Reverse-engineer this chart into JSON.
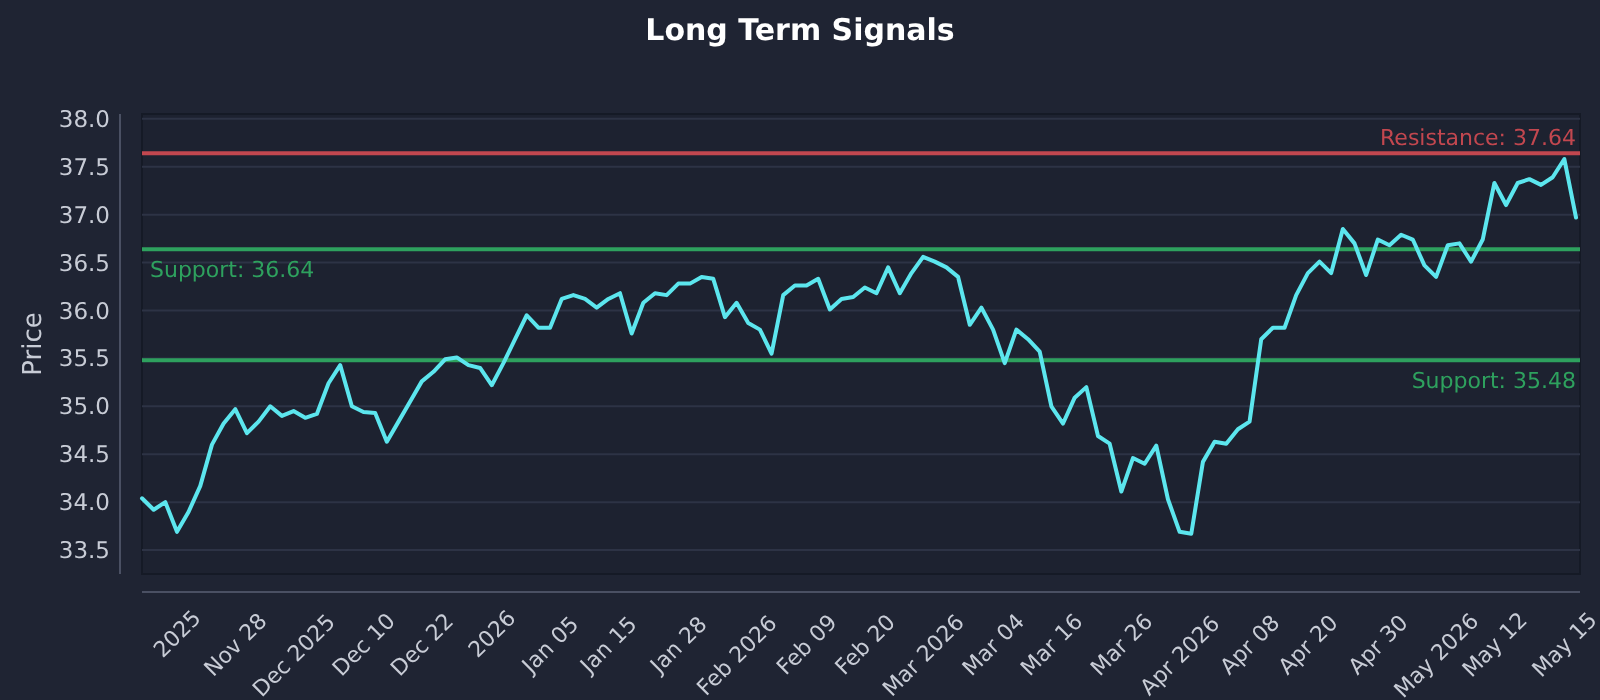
{
  "chart_data": {
    "type": "line",
    "title": "Long Term Signals",
    "ylabel": "Price",
    "categories": [
      null,
      null,
      null,
      "2025",
      null,
      null,
      null,
      null,
      "Nov 28",
      null,
      null,
      null,
      null,
      "Dec 2025",
      null,
      null,
      null,
      null,
      null,
      "Dec 10",
      null,
      null,
      null,
      null,
      "Dec 22",
      null,
      null,
      null,
      null,
      null,
      "2026",
      null,
      null,
      null,
      null,
      "Jan 05",
      null,
      null,
      null,
      null,
      "Jan 15",
      null,
      null,
      null,
      null,
      null,
      "Jan 28",
      null,
      null,
      null,
      null,
      "Feb 2026",
      null,
      null,
      null,
      null,
      null,
      "Feb 09",
      null,
      null,
      null,
      null,
      "Feb 20",
      null,
      null,
      null,
      null,
      "Mar 2026",
      null,
      null,
      null,
      null,
      null,
      "Mar 04",
      null,
      null,
      null,
      null,
      "Mar 16",
      null,
      null,
      null,
      null,
      null,
      "Mar 26",
      null,
      null,
      null,
      null,
      "Apr 2026",
      null,
      null,
      null,
      null,
      null,
      "Apr 08",
      null,
      null,
      null,
      null,
      "Apr 20",
      null,
      null,
      null,
      null,
      null,
      "Apr 30",
      null,
      null,
      null,
      null,
      "May 2026",
      null,
      null,
      null,
      null,
      "May 12",
      null,
      null,
      null,
      null,
      null,
      "May 15",
      null
    ],
    "series": [
      {
        "color": "#5ce6ee",
        "values": [
          34.04,
          33.92,
          34.0,
          33.69,
          33.9,
          34.17,
          34.6,
          34.82,
          34.97,
          34.72,
          34.84,
          35.0,
          34.9,
          34.95,
          34.88,
          34.92,
          35.24,
          35.43,
          35.0,
          34.94,
          34.93,
          34.63,
          34.84,
          35.05,
          35.26,
          35.36,
          35.49,
          35.51,
          35.43,
          35.4,
          35.22,
          35.45,
          35.7,
          35.95,
          35.82,
          35.82,
          36.12,
          36.16,
          36.12,
          36.03,
          36.12,
          36.18,
          35.76,
          36.08,
          36.18,
          36.16,
          36.28,
          36.28,
          36.35,
          36.33,
          35.93,
          36.08,
          35.87,
          35.8,
          35.55,
          36.16,
          36.26,
          36.26,
          36.33,
          36.01,
          36.12,
          36.14,
          36.24,
          36.18,
          36.45,
          36.18,
          36.39,
          36.56,
          36.51,
          36.45,
          36.35,
          35.85,
          36.03,
          35.8,
          35.45,
          35.8,
          35.7,
          35.57,
          35.0,
          34.82,
          35.09,
          35.2,
          34.69,
          34.61,
          34.11,
          34.46,
          34.4,
          34.59,
          34.03,
          33.69,
          33.67,
          34.42,
          34.63,
          34.61,
          34.76,
          34.84,
          35.7,
          35.82,
          35.82,
          36.16,
          36.39,
          36.51,
          36.39,
          36.85,
          36.7,
          36.37,
          36.74,
          36.68,
          36.79,
          36.74,
          36.47,
          36.35,
          36.68,
          36.7,
          36.51,
          36.74,
          37.33,
          37.1,
          37.33,
          37.37,
          37.31,
          37.39,
          37.58,
          36.97
        ]
      }
    ],
    "ylim": [
      33.25,
      38.05
    ],
    "yticks": [
      {
        "value": 33.5,
        "label": "33.5"
      },
      {
        "value": 34,
        "label": "34.0"
      },
      {
        "value": 34.5,
        "label": "34.5"
      },
      {
        "value": 35,
        "label": "35.0"
      },
      {
        "value": 35.5,
        "label": "35.5"
      },
      {
        "value": 36,
        "label": "36.0"
      },
      {
        "value": 36.5,
        "label": "36.5"
      },
      {
        "value": 37,
        "label": "37.0"
      },
      {
        "value": 37.5,
        "label": "37.5"
      },
      {
        "value": 38,
        "label": "38.0"
      }
    ],
    "grid": "y",
    "ref_lines": [
      {
        "axis": "y",
        "value": 37.64,
        "label": "Resistance: 37.64",
        "color": "#c2474f"
      },
      {
        "axis": "y",
        "value": 36.64,
        "label": "Support: 36.64",
        "color": "#2ea15e"
      },
      {
        "axis": "y",
        "value": 35.48,
        "label": "Support: 35.48",
        "color": "#2ea15e"
      }
    ]
  }
}
